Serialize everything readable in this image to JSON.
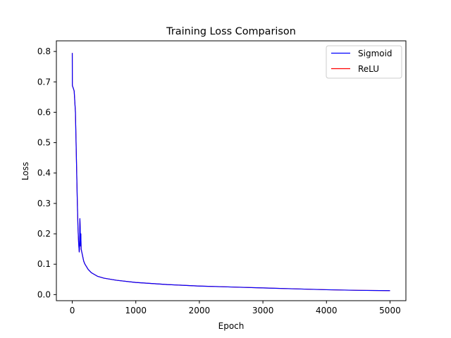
{
  "chart_data": {
    "type": "line",
    "title": "Training Loss Comparison",
    "xlabel": "Epoch",
    "ylabel": "Loss",
    "xlim": [
      -250,
      5250
    ],
    "ylim": [
      -0.02,
      0.835
    ],
    "xticks": [
      0,
      1000,
      2000,
      3000,
      4000,
      5000
    ],
    "xtick_labels": [
      "0",
      "1000",
      "2000",
      "3000",
      "4000",
      "5000"
    ],
    "yticks": [
      0.0,
      0.1,
      0.2,
      0.3,
      0.4,
      0.5,
      0.6,
      0.7,
      0.8
    ],
    "ytick_labels": [
      "0.0",
      "0.1",
      "0.2",
      "0.3",
      "0.4",
      "0.5",
      "0.6",
      "0.7",
      "0.8"
    ],
    "grid": false,
    "legend_position": "top-right",
    "series": [
      {
        "name": "Sigmoid",
        "color": "#0000ff",
        "x": [
          0,
          1,
          5,
          10,
          30,
          50,
          60,
          70,
          80,
          90,
          100,
          110,
          115,
          120,
          125,
          130,
          135,
          140,
          150,
          160,
          170,
          180,
          200,
          250,
          300,
          400,
          500,
          700,
          1000,
          1500,
          2000,
          2500,
          3000,
          3500,
          4000,
          4500,
          5000
        ],
        "y": [
          0.795,
          0.69,
          0.685,
          0.683,
          0.67,
          0.6,
          0.5,
          0.4,
          0.3,
          0.22,
          0.17,
          0.14,
          0.16,
          0.25,
          0.22,
          0.16,
          0.2,
          0.15,
          0.14,
          0.13,
          0.12,
          0.11,
          0.1,
          0.083,
          0.072,
          0.06,
          0.054,
          0.047,
          0.04,
          0.033,
          0.028,
          0.025,
          0.022,
          0.019,
          0.016,
          0.014,
          0.013
        ]
      },
      {
        "name": "ReLU",
        "color": "#ff0000",
        "x": [
          0,
          1,
          5,
          10,
          30,
          50,
          60,
          70,
          80,
          90,
          100,
          110,
          115,
          120,
          125,
          130,
          135,
          140,
          150,
          160,
          170,
          180,
          200,
          250,
          300,
          400,
          500,
          700,
          1000,
          1500,
          2000,
          2500,
          3000,
          3500,
          4000,
          4500,
          5000
        ],
        "y": [
          0.795,
          0.69,
          0.685,
          0.683,
          0.67,
          0.6,
          0.5,
          0.4,
          0.3,
          0.22,
          0.17,
          0.14,
          0.16,
          0.25,
          0.22,
          0.16,
          0.2,
          0.15,
          0.14,
          0.13,
          0.12,
          0.11,
          0.1,
          0.083,
          0.072,
          0.06,
          0.054,
          0.047,
          0.04,
          0.033,
          0.028,
          0.025,
          0.022,
          0.019,
          0.016,
          0.014,
          0.013
        ]
      }
    ]
  }
}
